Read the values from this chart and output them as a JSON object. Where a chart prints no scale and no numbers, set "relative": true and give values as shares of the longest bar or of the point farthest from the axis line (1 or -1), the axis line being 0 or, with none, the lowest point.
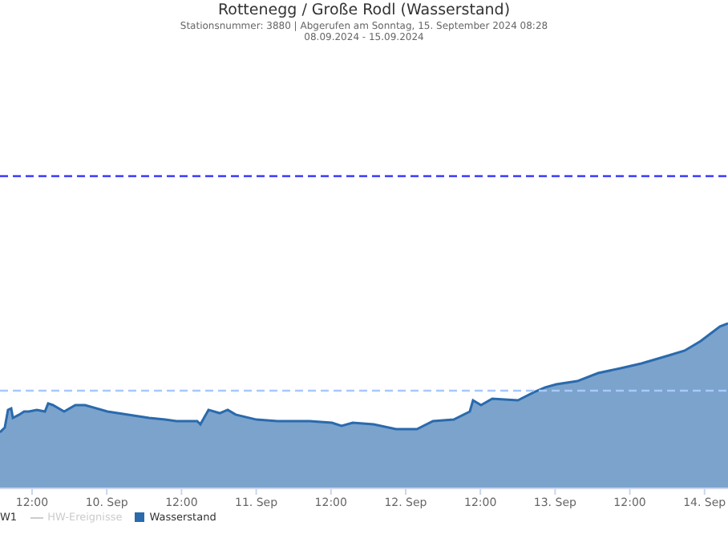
{
  "chart_data": {
    "type": "area",
    "title": "Rottenegg / Große Rodl (Wasserstand)",
    "subtitle": "Stationsnummer: 3880 | Abgerufen am Sonntag, 15. September 2024 08:28",
    "annotations": [
      "08.09.2024 - 15.09.2024",
      "W1",
      "HW-Ereignisse"
    ],
    "relative": true,
    "x": [
      "2024-09-09T06:51",
      "2024-09-09T07:37",
      "2024-09-09T08:08",
      "2024-09-09T08:39",
      "2024-09-09T08:55",
      "2024-09-09T09:56",
      "2024-09-09T10:43",
      "2024-09-09T11:29",
      "2024-09-09T12:46",
      "2024-09-09T14:04",
      "2024-09-09T14:35",
      "2024-09-09T15:21",
      "2024-09-09T17:09",
      "2024-09-09T18:57",
      "2024-09-09T20:30",
      "2024-09-10T00:06",
      "2024-09-10T03:27",
      "2024-09-10T06:48",
      "2024-09-10T09:22",
      "2024-09-10T11:11",
      "2024-09-10T14:31",
      "2024-09-10T15:02",
      "2024-09-10T16:20",
      "2024-09-10T18:08",
      "2024-09-10T19:25",
      "2024-09-10T20:42",
      "2024-09-11T00:03",
      "2024-09-11T03:24",
      "2024-09-11T08:33",
      "2024-09-11T12:09",
      "2024-09-11T13:42",
      "2024-09-11T15:30",
      "2024-09-11T18:51",
      "2024-09-11T22:27",
      "2024-09-12T01:48",
      "2024-09-12T04:23",
      "2024-09-12T07:43",
      "2024-09-12T10:18",
      "2024-09-12T10:49",
      "2024-09-12T12:06",
      "2024-09-12T13:54",
      "2024-09-12T18:01",
      "2024-09-12T20:36",
      "2024-09-12T22:24",
      "2024-09-13T00:12",
      "2024-09-13T03:33",
      "2024-09-13T06:54",
      "2024-09-13T10:30",
      "2024-09-13T13:51",
      "2024-09-13T18:14",
      "2024-09-13T20:48",
      "2024-09-13T23:23",
      "2024-09-14T02:28",
      "2024-09-14T03:46"
    ],
    "series": [
      {
        "name": "Wasserstand",
        "color": "#2a6aad",
        "values": [
          0.34,
          0.369,
          0.476,
          0.485,
          0.427,
          0.447,
          0.466,
          0.466,
          0.476,
          0.466,
          0.515,
          0.505,
          0.466,
          0.505,
          0.505,
          0.466,
          0.447,
          0.427,
          0.417,
          0.408,
          0.408,
          0.388,
          0.476,
          0.456,
          0.476,
          0.447,
          0.417,
          0.408,
          0.408,
          0.398,
          0.379,
          0.398,
          0.388,
          0.359,
          0.359,
          0.408,
          0.417,
          0.466,
          0.534,
          0.505,
          0.544,
          0.534,
          0.583,
          0.612,
          0.631,
          0.65,
          0.699,
          0.728,
          0.757,
          0.806,
          0.835,
          0.893,
          0.981,
          1.0
        ]
      }
    ],
    "xlim": [
      "2024-09-09T06:51",
      "2024-09-14T03:46"
    ],
    "xticks": [
      {
        "value": "2024-09-09T12:00",
        "label": "12:00"
      },
      {
        "value": "2024-09-10T00:00",
        "label": "10. Sep"
      },
      {
        "value": "2024-09-10T12:00",
        "label": "12:00"
      },
      {
        "value": "2024-09-11T00:00",
        "label": "11. Sep"
      },
      {
        "value": "2024-09-11T12:00",
        "label": "12:00"
      },
      {
        "value": "2024-09-12T00:00",
        "label": "12. Sep"
      },
      {
        "value": "2024-09-12T12:00",
        "label": "12:00"
      },
      {
        "value": "2024-09-13T00:00",
        "label": "13. Sep"
      },
      {
        "value": "2024-09-13T12:00",
        "label": "12:00"
      },
      {
        "value": "2024-09-14T00:00",
        "label": "14. Sep"
      }
    ],
    "ref_lines": [
      {
        "axis": "y",
        "value": 1.893,
        "color": "#3a3aff",
        "line_style": "dashed"
      },
      {
        "axis": "y",
        "value": 0.592,
        "color": "#a8c8ff",
        "line_style": "dashed"
      }
    ],
    "legend": "bottom left",
    "tick_labels": "x"
  }
}
